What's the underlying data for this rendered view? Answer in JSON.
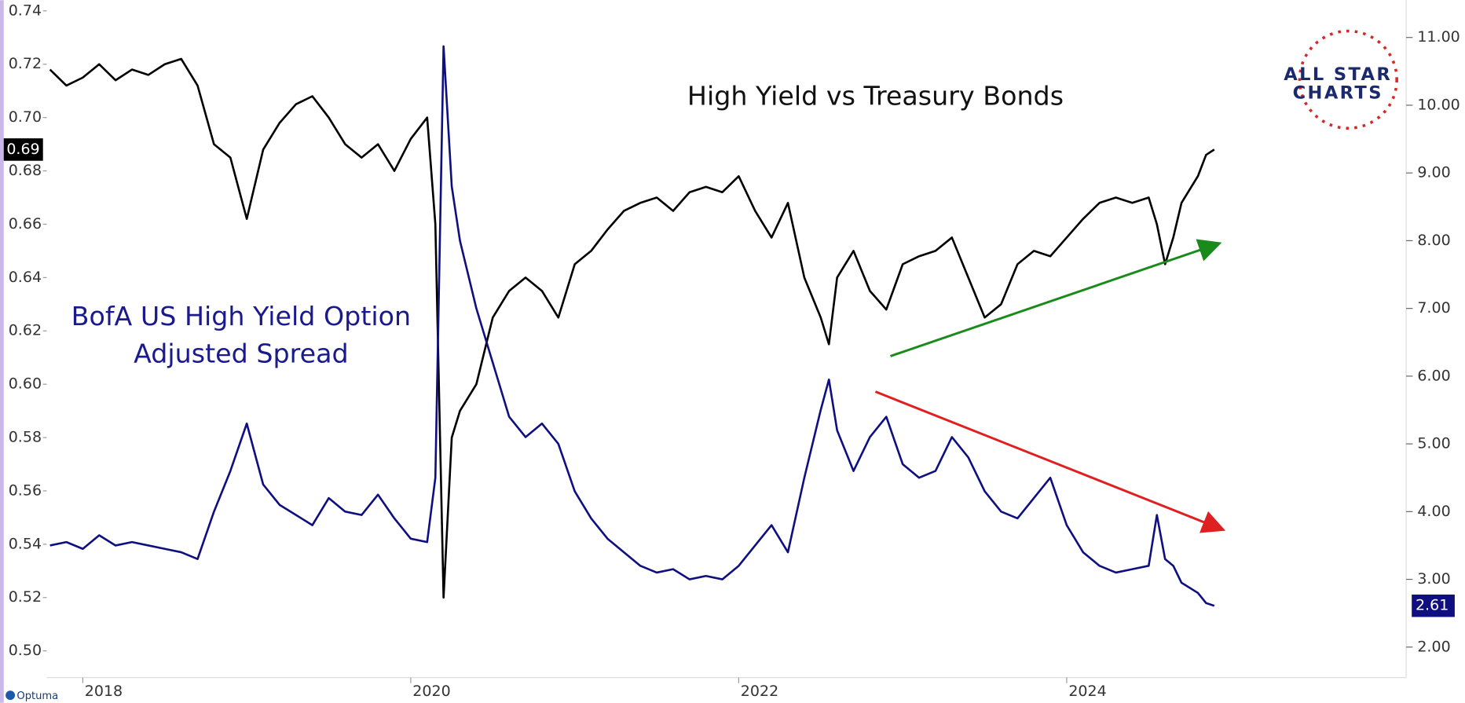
{
  "chart_data": {
    "type": "line",
    "title": "High Yield vs Treasury Bonds",
    "annotations": [
      "BofA US High Yield Option",
      "Adjusted Spread"
    ],
    "logo": {
      "line1": "ALL STAR",
      "line2": "CHARTS"
    },
    "source": "Optuma",
    "x": [
      2017.8,
      2017.9,
      2018.0,
      2018.1,
      2018.2,
      2018.3,
      2018.4,
      2018.5,
      2018.6,
      2018.7,
      2018.8,
      2018.9,
      2019.0,
      2019.1,
      2019.2,
      2019.3,
      2019.4,
      2019.5,
      2019.6,
      2019.7,
      2019.8,
      2019.9,
      2020.0,
      2020.1,
      2020.15,
      2020.2,
      2020.25,
      2020.3,
      2020.4,
      2020.5,
      2020.6,
      2020.7,
      2020.8,
      2020.9,
      2021.0,
      2021.1,
      2021.2,
      2021.3,
      2021.4,
      2021.5,
      2021.6,
      2021.7,
      2021.8,
      2021.9,
      2022.0,
      2022.1,
      2022.2,
      2022.3,
      2022.4,
      2022.5,
      2022.55,
      2022.6,
      2022.7,
      2022.8,
      2022.9,
      2023.0,
      2023.1,
      2023.2,
      2023.3,
      2023.4,
      2023.5,
      2023.6,
      2023.7,
      2023.8,
      2023.9,
      2024.0,
      2024.1,
      2024.2,
      2024.3,
      2024.4,
      2024.5,
      2024.55,
      2024.6,
      2024.65,
      2024.7,
      2024.8,
      2024.85,
      2024.9
    ],
    "series": [
      {
        "color": "#000000",
        "axis": "y",
        "last_label": "0.69",
        "values": [
          0.718,
          0.712,
          0.715,
          0.72,
          0.714,
          0.718,
          0.716,
          0.72,
          0.722,
          0.712,
          0.69,
          0.685,
          0.662,
          0.688,
          0.698,
          0.705,
          0.708,
          0.7,
          0.69,
          0.685,
          0.69,
          0.68,
          0.692,
          0.7,
          0.66,
          0.52,
          0.58,
          0.59,
          0.6,
          0.625,
          0.635,
          0.64,
          0.635,
          0.625,
          0.645,
          0.65,
          0.658,
          0.665,
          0.668,
          0.67,
          0.665,
          0.672,
          0.674,
          0.672,
          0.678,
          0.665,
          0.655,
          0.668,
          0.64,
          0.625,
          0.615,
          0.64,
          0.65,
          0.635,
          0.628,
          0.645,
          0.648,
          0.65,
          0.655,
          0.64,
          0.625,
          0.63,
          0.645,
          0.65,
          0.648,
          0.655,
          0.662,
          0.668,
          0.67,
          0.668,
          0.67,
          0.66,
          0.645,
          0.655,
          0.668,
          0.678,
          0.686,
          0.688
        ]
      },
      {
        "color": "#0f0f80",
        "axis": "y2",
        "last_label": "2.61",
        "values": [
          3.5,
          3.55,
          3.45,
          3.65,
          3.5,
          3.55,
          3.5,
          3.45,
          3.4,
          3.3,
          4.0,
          4.6,
          5.3,
          4.4,
          4.1,
          3.95,
          3.8,
          4.2,
          4.0,
          3.95,
          4.25,
          3.9,
          3.6,
          3.55,
          4.5,
          10.87,
          8.8,
          8.0,
          7.0,
          6.2,
          5.4,
          5.1,
          5.3,
          5.0,
          4.3,
          3.9,
          3.6,
          3.4,
          3.2,
          3.1,
          3.15,
          3.0,
          3.05,
          3.0,
          3.2,
          3.5,
          3.8,
          3.4,
          4.5,
          5.5,
          5.95,
          5.2,
          4.6,
          5.1,
          5.4,
          4.7,
          4.5,
          4.6,
          5.1,
          4.8,
          4.3,
          4.0,
          3.9,
          4.2,
          4.5,
          3.8,
          3.4,
          3.2,
          3.1,
          3.15,
          3.2,
          3.95,
          3.3,
          3.2,
          2.95,
          2.8,
          2.65,
          2.61
        ]
      }
    ],
    "xlim": [
      2017.78,
      2026.07
    ],
    "xticks": [
      2018,
      2020,
      2022,
      2024
    ],
    "ylim": [
      0.49,
      0.744
    ],
    "yticks": [
      {
        "value": 0.5,
        "label": "0.50"
      },
      0.52,
      0.54,
      0.56,
      0.58,
      {
        "value": 0.6,
        "label": "0.60"
      },
      0.62,
      0.64,
      0.66,
      0.68,
      {
        "value": 0.7,
        "label": "0.70"
      },
      0.72,
      0.74
    ],
    "y2lim": [
      1.55,
      11.55
    ],
    "y2ticks": [
      {
        "value": 2,
        "label": "2.00"
      },
      {
        "value": 3,
        "label": "3.00"
      },
      {
        "value": 4,
        "label": "4.00"
      },
      {
        "value": 5,
        "label": "5.00"
      },
      {
        "value": 6,
        "label": "6.00"
      },
      {
        "value": 7,
        "label": "7.00"
      },
      {
        "value": 8,
        "label": "8.00"
      },
      {
        "value": 9,
        "label": "9.00"
      },
      {
        "value": 10,
        "label": "10.00"
      },
      {
        "value": 11,
        "label": "11.00"
      }
    ],
    "grid": false
  }
}
